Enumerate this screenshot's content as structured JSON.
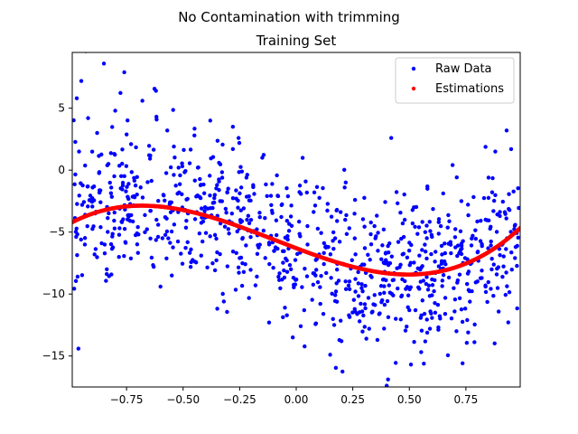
{
  "chart_data": {
    "type": "scatter",
    "suptitle": "No Contamination with trimming",
    "title": "Training Set",
    "xlabel": "",
    "ylabel": "",
    "xlim": [
      -0.99,
      0.99
    ],
    "ylim": [
      -17.5,
      9.5
    ],
    "xticks": [
      -0.75,
      -0.5,
      -0.25,
      0.0,
      0.25,
      0.5,
      0.75
    ],
    "xtick_labels": [
      "−0.75",
      "−0.50",
      "−0.25",
      "0.00",
      "0.25",
      "0.50",
      "0.75"
    ],
    "yticks": [
      5,
      0,
      -5,
      -10,
      -15
    ],
    "ytick_labels": [
      "5",
      "0",
      "−5",
      "−10",
      "−15"
    ],
    "grid": false,
    "legend_position": "top-right",
    "series": [
      {
        "name": "Raw Data",
        "color": "#0000ff",
        "kind": "noisy-cloud",
        "points": [
          [
            -0.97,
            5.8
          ],
          [
            -0.96,
            1.5
          ],
          [
            -0.95,
            7.2
          ],
          [
            -0.93,
            9.6
          ],
          [
            -0.92,
            4.2
          ],
          [
            -0.9,
            -1.4
          ],
          [
            -0.88,
            3.0
          ],
          [
            -0.86,
            -5.9
          ],
          [
            -0.85,
            8.6
          ],
          [
            -0.83,
            0.5
          ],
          [
            -0.8,
            4.8
          ],
          [
            -0.78,
            -3.1
          ],
          [
            -0.76,
            7.9
          ],
          [
            -0.73,
            2.1
          ],
          [
            -0.7,
            -4.6
          ],
          [
            -0.68,
            5.6
          ],
          [
            -0.65,
            1.2
          ],
          [
            -0.62,
            6.4
          ],
          [
            -0.6,
            -9.4
          ],
          [
            -0.57,
            3.2
          ],
          [
            -0.55,
            -8.5
          ],
          [
            -0.52,
            0.2
          ],
          [
            -0.48,
            -3.4
          ],
          [
            -0.45,
            2.8
          ],
          [
            -0.42,
            -6.9
          ],
          [
            -0.38,
            4.0
          ],
          [
            -0.35,
            -1.2
          ],
          [
            -0.32,
            -10.6
          ],
          [
            -0.28,
            3.5
          ],
          [
            -0.25,
            -7.1
          ],
          [
            -0.22,
            -0.6
          ],
          [
            -0.18,
            -9.3
          ],
          [
            -0.15,
            1.0
          ],
          [
            -0.12,
            -12.3
          ],
          [
            -0.08,
            -2.1
          ],
          [
            -0.05,
            -11.1
          ],
          [
            -0.02,
            -4.5
          ],
          [
            0.02,
            -12.6
          ],
          [
            0.05,
            -6.0
          ],
          [
            0.08,
            -1.8
          ],
          [
            0.12,
            -11.6
          ],
          [
            0.15,
            -14.9
          ],
          [
            0.18,
            -3.2
          ],
          [
            0.2,
            -13.8
          ],
          [
            0.22,
            -9.6
          ],
          [
            0.26,
            -2.4
          ],
          [
            0.28,
            -12.2
          ],
          [
            0.31,
            -13.6
          ],
          [
            0.35,
            -5.5
          ],
          [
            0.38,
            -10.5
          ],
          [
            0.4,
            -17.4
          ],
          [
            0.42,
            2.6
          ],
          [
            0.44,
            -12.0
          ],
          [
            0.47,
            -6.8
          ],
          [
            0.5,
            -11.3
          ],
          [
            0.52,
            -3.0
          ],
          [
            0.55,
            -9.0
          ],
          [
            0.58,
            -1.5
          ],
          [
            0.6,
            -10.1
          ],
          [
            0.63,
            -4.2
          ],
          [
            0.66,
            -7.6
          ],
          [
            0.7,
            -11.4
          ],
          [
            0.73,
            -2.5
          ],
          [
            0.76,
            -13.1
          ],
          [
            0.78,
            -5.3
          ],
          [
            0.82,
            -8.7
          ],
          [
            0.85,
            -0.6
          ],
          [
            0.88,
            1.5
          ],
          [
            0.9,
            -3.7
          ],
          [
            0.93,
            3.2
          ],
          [
            0.95,
            1.7
          ],
          [
            0.97,
            -6.2
          ]
        ]
      },
      {
        "name": "Estimations",
        "color": "#ff0000",
        "kind": "cubic-curve",
        "coefficients": [
          -6.3,
          -6.9,
          1.9,
          6.8
        ]
      }
    ]
  }
}
